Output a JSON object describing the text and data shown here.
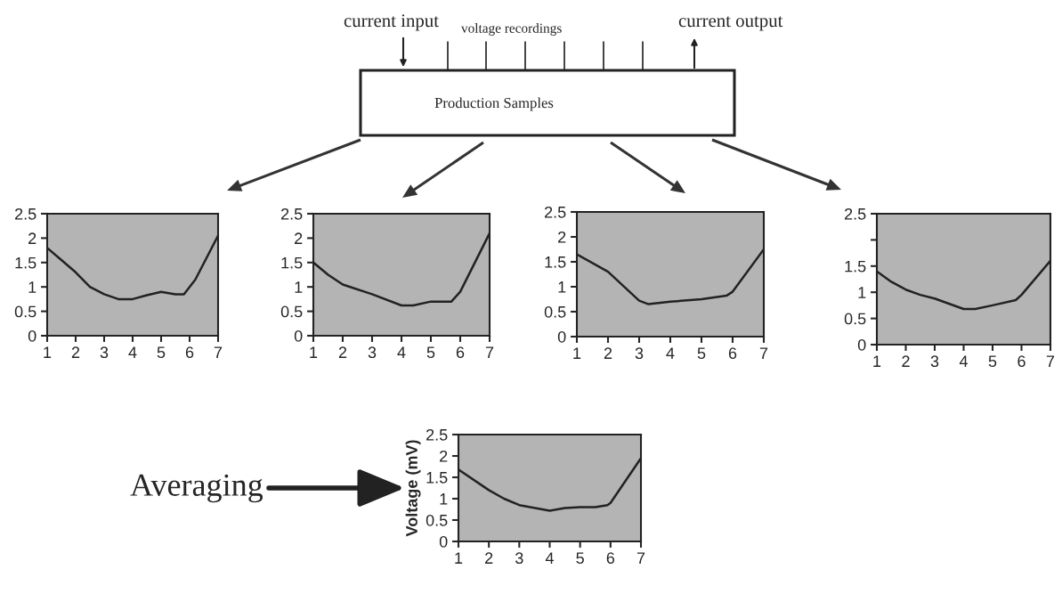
{
  "chart_data": [
    {
      "type": "line",
      "color": "#222222",
      "x": [
        1,
        1.5,
        2,
        2.5,
        3,
        3.5,
        4,
        4.5,
        5,
        5.5,
        5.8,
        6,
        6.2,
        7
      ],
      "values": [
        1.8,
        1.55,
        1.3,
        1.0,
        0.85,
        0.75,
        0.75,
        0.83,
        0.9,
        0.85,
        0.85,
        1.0,
        1.15,
        2.05
      ],
      "xlim": [
        1,
        7
      ],
      "ylim": [
        0,
        2.5
      ],
      "xticks": [
        1,
        2,
        3,
        4,
        5,
        6,
        7
      ],
      "yticks": [
        0,
        0.5,
        1,
        1.5,
        2,
        2.5
      ]
    },
    {
      "type": "line",
      "color": "#222222",
      "x": [
        1,
        1.5,
        2,
        3,
        4,
        4.4,
        5,
        5.7,
        6,
        7
      ],
      "values": [
        1.5,
        1.25,
        1.05,
        0.85,
        0.62,
        0.62,
        0.7,
        0.7,
        0.9,
        2.1
      ],
      "xlim": [
        1,
        7
      ],
      "ylim": [
        0,
        2.5
      ],
      "xticks": [
        1,
        2,
        3,
        4,
        5,
        6,
        7
      ],
      "yticks": [
        0,
        0.5,
        1,
        1.5,
        2,
        2.5
      ]
    },
    {
      "type": "line",
      "color": "#222222",
      "x": [
        1,
        2,
        3,
        3.3,
        4,
        5,
        5.8,
        6,
        7
      ],
      "values": [
        1.65,
        1.3,
        0.72,
        0.65,
        0.7,
        0.75,
        0.82,
        0.9,
        1.75
      ],
      "xlim": [
        1,
        7
      ],
      "ylim": [
        0,
        2.5
      ],
      "xticks": [
        1,
        2,
        3,
        4,
        5,
        6,
        7
      ],
      "yticks": [
        0,
        0.5,
        1,
        1.5,
        2,
        2.5
      ]
    },
    {
      "type": "line",
      "color": "#222222",
      "x": [
        1,
        1.5,
        2,
        2.5,
        3,
        4,
        4.4,
        5,
        5.8,
        6,
        7
      ],
      "values": [
        1.4,
        1.2,
        1.05,
        0.95,
        0.88,
        0.68,
        0.68,
        0.75,
        0.85,
        0.95,
        1.6
      ],
      "xlim": [
        1,
        7
      ],
      "ylim": [
        0,
        2.5
      ],
      "xticks": [
        1,
        2,
        3,
        4,
        5,
        6,
        7
      ],
      "yticks": [
        0,
        0.5,
        1,
        1.5,
        {
          "value": 2,
          "label": null
        },
        2.5
      ]
    },
    {
      "type": "line",
      "color": "#222222",
      "x": [
        1,
        2,
        2.5,
        3,
        4,
        4.5,
        5,
        5.5,
        5.9,
        6,
        7
      ],
      "values": [
        1.68,
        1.2,
        1.0,
        0.85,
        0.72,
        0.78,
        0.8,
        0.8,
        0.85,
        0.9,
        1.95
      ],
      "xlim": [
        1,
        7
      ],
      "ylim": [
        0,
        2.5
      ],
      "xticks": [
        1,
        2,
        3,
        4,
        5,
        6,
        7
      ],
      "yticks": [
        0,
        0.5,
        1,
        1.5,
        2,
        2.5
      ],
      "ylabel": "Voltage (mV)",
      "annotations": [
        "Averaging"
      ]
    },
    {
      "type": "other",
      "annotations": [
        "current input",
        "voltage recordings",
        "current output",
        "Production Samples"
      ]
    }
  ]
}
